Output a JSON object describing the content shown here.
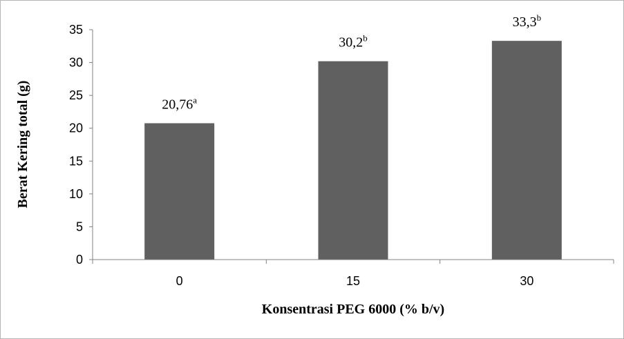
{
  "chart_data": {
    "type": "bar",
    "categories": [
      "0",
      "15",
      "30"
    ],
    "values": [
      20.76,
      30.2,
      33.3
    ],
    "data_labels": [
      {
        "value": "20,76",
        "sup": "a"
      },
      {
        "value": "30,2",
        "sup": "b"
      },
      {
        "value": "33,3",
        "sup": "b"
      }
    ],
    "title": "",
    "xlabel": "Konsentrasi PEG 6000 (% b/v)",
    "ylabel": "Berat Kering total (g)",
    "ylim": [
      0,
      35
    ],
    "yticks": [
      "0",
      "5",
      "10",
      "15",
      "20",
      "25",
      "30",
      "35"
    ],
    "grid": false,
    "legend": "none",
    "bar_color": "#606060"
  }
}
